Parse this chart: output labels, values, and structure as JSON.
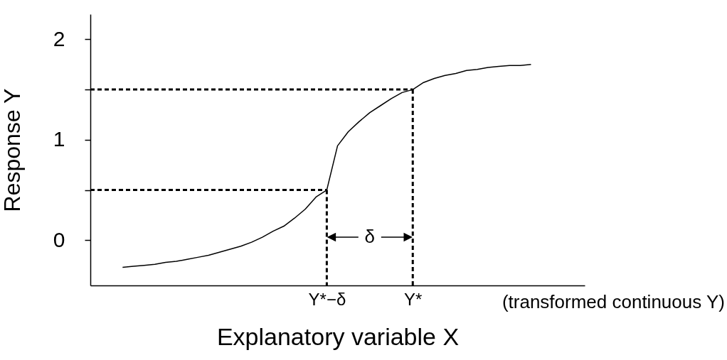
{
  "chart_data": {
    "type": "line",
    "xlabel": "Explanatory variable X",
    "ylabel": "Response Y",
    "categories": [
      null,
      null,
      null,
      null,
      null,
      null,
      null,
      null,
      null,
      null,
      null,
      null,
      null,
      null,
      null,
      null,
      null,
      null,
      null,
      null,
      null,
      null,
      "Y*−δ",
      null,
      null,
      null,
      null,
      null,
      null,
      null,
      "Y*",
      null,
      null,
      null,
      null,
      null,
      null,
      null,
      null,
      null,
      null,
      null,
      null,
      null,
      null,
      null,
      null
    ],
    "ylim": [
      -0.45,
      2.25
    ],
    "yticks": [
      0,
      {
        "value": 0.5,
        "label": null
      },
      1,
      {
        "value": 1.5,
        "label": null
      },
      2
    ],
    "series": [
      {
        "type": "line",
        "color": "#000000",
        "values": [
          null,
          null,
          null,
          -0.27,
          -0.26,
          -0.25,
          -0.24,
          -0.22,
          -0.21,
          -0.19,
          -0.17,
          -0.15,
          -0.12,
          -0.09,
          -0.06,
          -0.02,
          0.03,
          0.09,
          0.14,
          0.22,
          0.31,
          0.43,
          0.5,
          0.94,
          1.08,
          1.18,
          1.27,
          1.34,
          1.41,
          1.47,
          1.5,
          1.57,
          1.61,
          1.64,
          1.66,
          1.69,
          1.7,
          1.72,
          1.73,
          1.74,
          1.74,
          1.75,
          null,
          null,
          null,
          null,
          null
        ]
      },
      {
        "type": "line",
        "line_style": "dashed",
        "color": "#000000",
        "values": [
          0.5,
          0.5,
          0.5,
          0.5,
          0.5,
          0.5,
          0.5,
          0.5,
          0.5,
          0.5,
          0.5,
          0.5,
          0.5,
          0.5,
          0.5,
          0.5,
          0.5,
          0.5,
          0.5,
          0.5,
          0.5,
          0.5,
          0.5,
          null,
          null,
          null,
          null,
          null,
          null,
          null,
          null,
          null,
          null,
          null,
          null,
          null,
          null,
          null,
          null,
          null,
          null,
          null,
          null,
          null,
          null,
          null,
          null
        ]
      },
      {
        "type": "line",
        "line_style": "dashed",
        "color": "#000000",
        "x": [
          "Y*−δ",
          "Y*−δ"
        ],
        "values": [
          0.5,
          -0.45
        ]
      },
      {
        "type": "line",
        "line_style": "dashed",
        "color": "#000000",
        "values": [
          1.5,
          1.5,
          1.5,
          1.5,
          1.5,
          1.5,
          1.5,
          1.5,
          1.5,
          1.5,
          1.5,
          1.5,
          1.5,
          1.5,
          1.5,
          1.5,
          1.5,
          1.5,
          1.5,
          1.5,
          1.5,
          1.5,
          1.5,
          1.5,
          1.5,
          1.5,
          1.5,
          1.5,
          1.5,
          1.5,
          1.5,
          null,
          null,
          null,
          null,
          null,
          null,
          null,
          null,
          null,
          null,
          null,
          null,
          null,
          null,
          null,
          null
        ]
      },
      {
        "type": "line",
        "line_style": "dashed",
        "color": "#000000",
        "x": [
          "Y*",
          "Y*"
        ],
        "values": [
          1.5,
          -0.45
        ]
      }
    ],
    "annotations": [
      "δ",
      "(transformed continuous Y)"
    ]
  }
}
